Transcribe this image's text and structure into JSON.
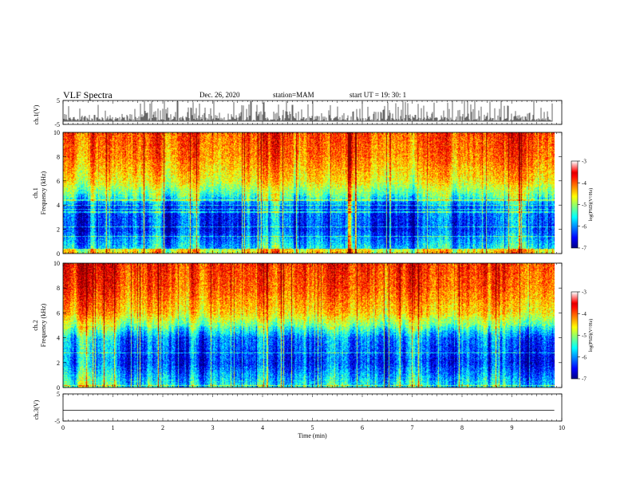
{
  "header": {
    "title": "VLF Spectra",
    "date": "Dec. 26, 2020",
    "station": "station=MAM",
    "start": "start  UT  =   19: 30: 1"
  },
  "chart_data": [
    {
      "type": "line",
      "name": "ch1-waveform",
      "ylabel": "ch.1(V)",
      "ylim": [
        -5,
        5
      ],
      "yticks": [
        5,
        -5
      ],
      "xlim": [
        0,
        10
      ],
      "series_color": "#000000",
      "baseline": -3.5,
      "description": "dense spiky waveform, spikes up to about 4 V"
    },
    {
      "type": "heatmap",
      "name": "ch1-spectrogram",
      "ylabel_top": "ch.1",
      "ylabel": "Frequency  (kHz)",
      "ylim": [
        0,
        10
      ],
      "yticks": [
        0,
        2,
        4,
        6,
        8,
        10
      ],
      "xlim": [
        0,
        9.85
      ],
      "colorbar": {
        "label": "log(PSD)(V²/Hz)",
        "range": [
          -7,
          -3
        ],
        "ticks": [
          "-3",
          "-4",
          "-5",
          "-6",
          "-7"
        ]
      },
      "profile_khz": [
        0,
        2,
        4,
        4.8,
        6,
        8,
        10
      ],
      "profile_logpsd": [
        -5.4,
        -6.3,
        -6.1,
        -5.2,
        -4.5,
        -4.0,
        -3.8
      ]
    },
    {
      "type": "heatmap",
      "name": "ch2-spectrogram",
      "ylabel_top": "ch.2",
      "ylabel": "Frequency  (kHz)",
      "ylim": [
        0,
        10
      ],
      "yticks": [
        0,
        2,
        4,
        6,
        8,
        10
      ],
      "xlim": [
        0,
        9.85
      ],
      "colorbar": {
        "label": "log(PSD)(V²/Hz)",
        "range": [
          -7,
          -3
        ],
        "ticks": [
          "-3",
          "-4",
          "-5",
          "-6",
          "-7"
        ]
      },
      "profile_khz": [
        0,
        2,
        4,
        5,
        6,
        8,
        10
      ],
      "profile_logpsd": [
        -5.3,
        -6.2,
        -5.9,
        -5.0,
        -4.3,
        -3.8,
        -3.6
      ]
    },
    {
      "type": "line",
      "name": "ch3-waveform",
      "ylabel": "ch.3(V)",
      "ylim": [
        -5,
        5
      ],
      "yticks": [
        5,
        -5
      ],
      "xlim": [
        0,
        9.85
      ],
      "constant_value": -1,
      "series_color": "#000000"
    }
  ],
  "x_axis": {
    "label": "Time  (min)",
    "ticks": [
      "0",
      "1",
      "2",
      "3",
      "4",
      "5",
      "6",
      "7",
      "8",
      "9",
      "10"
    ],
    "range": [
      0,
      10
    ]
  }
}
